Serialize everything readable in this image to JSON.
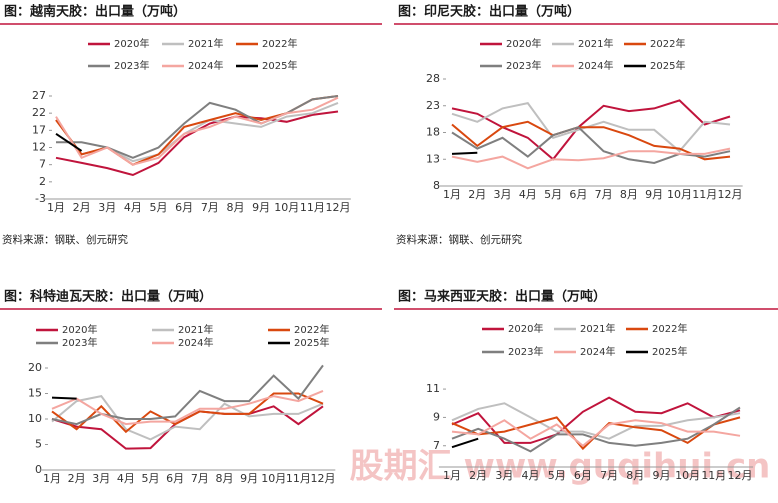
{
  "chart_data": [
    {
      "type": "line",
      "title": "图：越南天胶：出口量（万吨）",
      "source": "资料来源：钢联、创元研究",
      "categories": [
        "1月",
        "2月",
        "3月",
        "4月",
        "5月",
        "6月",
        "7月",
        "8月",
        "9月",
        "10月",
        "11月",
        "12月"
      ],
      "ylim": [
        -3,
        27
      ],
      "yticks": [
        -3,
        2,
        7,
        12,
        17,
        22,
        27
      ],
      "series": [
        {
          "name": "2020年",
          "color": "#c0143c",
          "values": [
            9,
            7.5,
            6,
            4,
            7.5,
            15,
            19,
            21,
            20.5,
            19.5,
            21.5,
            22.5
          ]
        },
        {
          "name": "2021年",
          "color": "#bfbfbf",
          "values": [
            20,
            10,
            12,
            8,
            10,
            16,
            20,
            19,
            18,
            21,
            22,
            25
          ]
        },
        {
          "name": "2022年",
          "color": "#d9480f",
          "values": [
            20,
            10,
            12,
            7,
            10,
            18,
            20,
            22,
            20,
            22,
            26,
            27
          ]
        },
        {
          "name": "2023年",
          "color": "#7f7f7f",
          "values": [
            13.5,
            13.5,
            12,
            9,
            12,
            19,
            25,
            23,
            19,
            22,
            26,
            27
          ]
        },
        {
          "name": "2024年",
          "color": "#f4a6a0",
          "values": [
            21,
            9,
            12,
            7,
            9,
            16,
            18,
            21,
            19,
            22,
            23,
            26.5
          ]
        },
        {
          "name": "2025年",
          "color": "#000000",
          "values": [
            16,
            11,
            null,
            null,
            null,
            null,
            null,
            null,
            null,
            null,
            null,
            null
          ]
        }
      ]
    },
    {
      "type": "line",
      "title": "图：印尼天胶：出口量（万吨）",
      "source": "资料来源：钢联、创元研究",
      "categories": [
        "1月",
        "2月",
        "3月",
        "4月",
        "5月",
        "6月",
        "7月",
        "8月",
        "9月",
        "10月",
        "11月",
        "12月"
      ],
      "ylim": [
        8,
        28
      ],
      "yticks": [
        8,
        13,
        18,
        23,
        28
      ],
      "series": [
        {
          "name": "2020年",
          "color": "#c0143c",
          "values": [
            22.5,
            21.5,
            19,
            17,
            13,
            19,
            23,
            22,
            22.5,
            24,
            19.5,
            21
          ]
        },
        {
          "name": "2021年",
          "color": "#bfbfbf",
          "values": [
            21.5,
            20,
            22.5,
            23.5,
            17,
            18.5,
            20,
            18.5,
            18.5,
            14.5,
            20,
            19.5
          ]
        },
        {
          "name": "2022年",
          "color": "#d9480f",
          "values": [
            19.5,
            15.5,
            19,
            20,
            17.5,
            19,
            19,
            17.5,
            15.5,
            15,
            13,
            13.5
          ]
        },
        {
          "name": "2023年",
          "color": "#7f7f7f",
          "values": [
            18,
            15,
            17,
            13.5,
            17.5,
            19,
            14.5,
            13,
            12.3,
            14,
            13.5,
            14.5
          ]
        },
        {
          "name": "2024年",
          "color": "#f4a6a0",
          "values": [
            13.5,
            12.5,
            13.5,
            11.3,
            13,
            12.8,
            13.2,
            14.5,
            14.5,
            14,
            14,
            15
          ]
        },
        {
          "name": "2025年",
          "color": "#000000",
          "values": [
            14,
            14.2,
            null,
            null,
            null,
            null,
            null,
            null,
            null,
            null,
            null,
            null
          ]
        }
      ]
    },
    {
      "type": "line",
      "title": "图：科特迪瓦天胶：出口量（万吨）",
      "categories": [
        "1月",
        "2月",
        "3月",
        "4月",
        "5月",
        "6月",
        "7月",
        "8月",
        "9月",
        "10月",
        "11月",
        "12月"
      ],
      "ylim": [
        0,
        20
      ],
      "yticks": [
        0,
        5,
        10,
        15,
        20
      ],
      "series": [
        {
          "name": "2020年",
          "color": "#c0143c",
          "values": [
            10,
            8.5,
            8,
            4.2,
            4.3,
            9,
            11.5,
            11,
            11,
            12.5,
            9,
            12.5
          ]
        },
        {
          "name": "2021年",
          "color": "#bfbfbf",
          "values": [
            9.5,
            13.5,
            14.5,
            8,
            6,
            8.5,
            8,
            13,
            10.5,
            11,
            11,
            13
          ]
        },
        {
          "name": "2022年",
          "color": "#d9480f",
          "values": [
            11.5,
            8,
            12.5,
            7.5,
            11.5,
            9,
            11.5,
            11,
            11,
            15,
            15,
            13
          ]
        },
        {
          "name": "2023年",
          "color": "#7f7f7f",
          "values": [
            10,
            9,
            11,
            10,
            10,
            10.5,
            15.5,
            13.5,
            13.5,
            18.5,
            14,
            20.5
          ]
        },
        {
          "name": "2024年",
          "color": "#f4a6a0",
          "values": [
            12,
            14,
            11,
            9,
            9.5,
            9.5,
            12,
            12,
            13,
            14.5,
            13.5,
            15.5
          ]
        },
        {
          "name": "2025年",
          "color": "#000000",
          "values": [
            14.2,
            14,
            null,
            null,
            null,
            null,
            null,
            null,
            null,
            null,
            null,
            null
          ]
        }
      ]
    },
    {
      "type": "line",
      "title": "图：马来西亚天胶：出口量（万吨）",
      "categories": [
        "1月",
        "2月",
        "3月",
        "4月",
        "5月",
        "6月",
        "7月",
        "8月",
        "9月",
        "10月",
        "11月",
        "12月"
      ],
      "ylim": [
        5.5,
        11.5
      ],
      "yticks": [
        7,
        9,
        11
      ],
      "series": [
        {
          "name": "2020年",
          "color": "#c0143c",
          "values": [
            8.5,
            9.3,
            7.2,
            7.2,
            7.8,
            9.4,
            10.4,
            9.4,
            9.3,
            10,
            9,
            9.5
          ]
        },
        {
          "name": "2021年",
          "color": "#bfbfbf",
          "values": [
            8.8,
            9.6,
            10,
            9,
            8,
            8,
            7.5,
            8.4,
            8.4,
            8.8,
            9,
            9.3
          ]
        },
        {
          "name": "2022年",
          "color": "#d9480f",
          "values": [
            8.6,
            7.8,
            8,
            8.5,
            9,
            6.8,
            8.6,
            8.3,
            8.1,
            7.2,
            8.5,
            9
          ]
        },
        {
          "name": "2023年",
          "color": "#7f7f7f",
          "values": [
            7.5,
            8.2,
            7.5,
            6.6,
            7.8,
            7.8,
            7.2,
            7,
            7.2,
            7.5,
            8.5,
            9.7
          ]
        },
        {
          "name": "2024年",
          "color": "#f4a6a0",
          "values": [
            8,
            7.8,
            8.8,
            7.5,
            8.5,
            7,
            8.5,
            8.8,
            8.6,
            8,
            8,
            7.7
          ]
        },
        {
          "name": "2025年",
          "color": "#000000",
          "values": [
            6.9,
            7.5,
            null,
            null,
            null,
            null,
            null,
            null,
            null,
            null,
            null,
            null
          ]
        }
      ]
    }
  ],
  "watermark": "股期汇 www.guqihui.cn"
}
